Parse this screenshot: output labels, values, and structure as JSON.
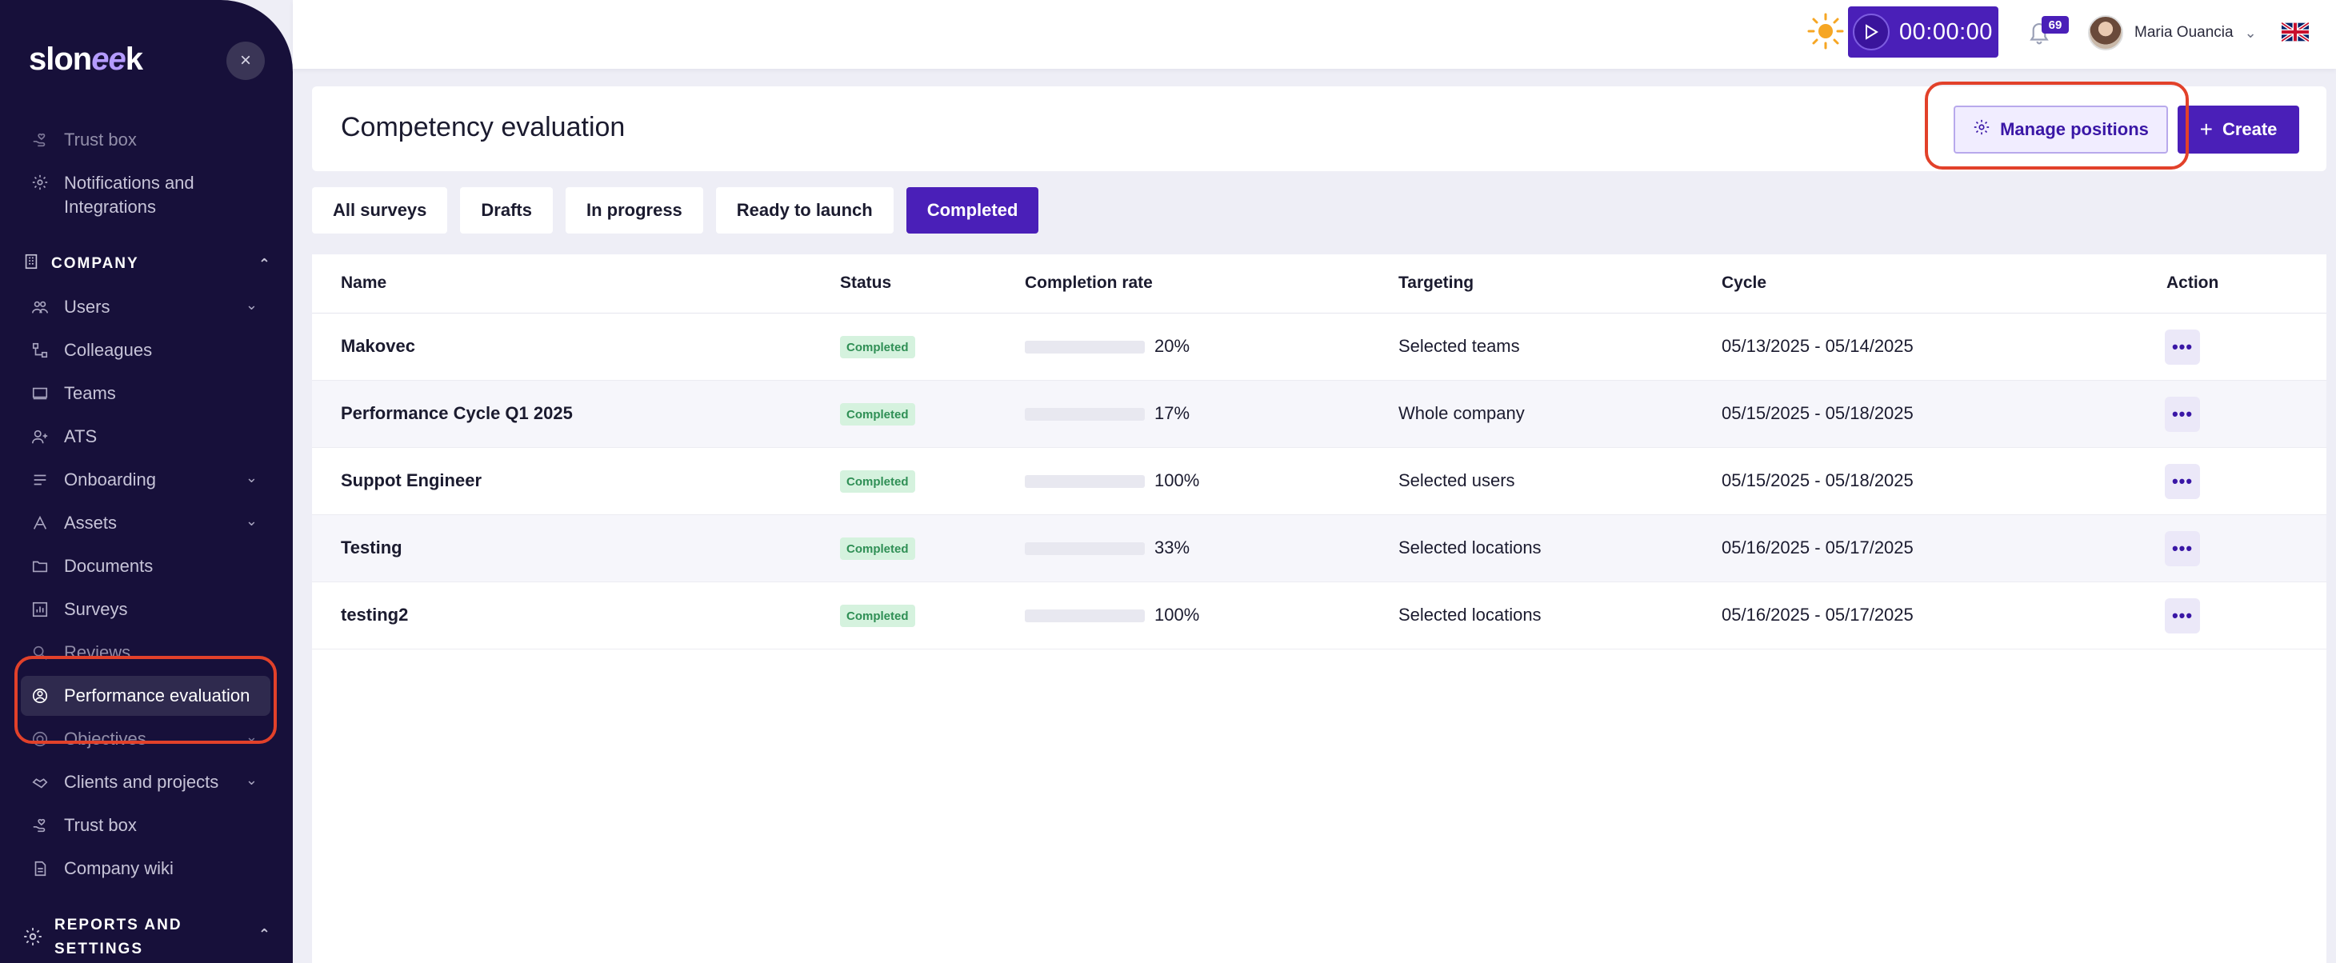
{
  "brand": {
    "logo_prefix": "slon",
    "logo_mid": "ee",
    "logo_suffix": "k"
  },
  "colors": {
    "sidebar_bg": "#17103a",
    "accent": "#4a1fb8",
    "status_green": "#2f8f55",
    "highlight_red": "#e2412a"
  },
  "sidebar": {
    "top_items": [
      {
        "label": "Trust box",
        "icon": "hand-heart-icon"
      },
      {
        "label": "Notifications and Integrations",
        "line1": "Notifications and",
        "line2": "Integrations",
        "icon": "gear-icon"
      }
    ],
    "company_section": "COMPANY",
    "items": [
      {
        "label": "Users",
        "icon": "users-icon",
        "expandable": true
      },
      {
        "label": "Colleagues",
        "icon": "org-chart-icon"
      },
      {
        "label": "Teams",
        "icon": "teams-icon"
      },
      {
        "label": "ATS",
        "icon": "add-user-icon"
      },
      {
        "label": "Onboarding",
        "icon": "list-icon",
        "expandable": true
      },
      {
        "label": "Assets",
        "icon": "assets-icon",
        "expandable": true
      },
      {
        "label": "Documents",
        "icon": "folder-icon"
      },
      {
        "label": "Surveys",
        "icon": "bar-chart-icon"
      },
      {
        "label": "Reviews",
        "icon": "reviews-icon"
      },
      {
        "label": "Performance evaluation",
        "icon": "performance-icon",
        "active": true
      },
      {
        "label": "Objectives",
        "icon": "target-icon",
        "expandable": true
      },
      {
        "label": "Clients and projects",
        "icon": "handshake-icon",
        "expandable": true
      },
      {
        "label": "Trust box",
        "icon": "hand-heart-icon"
      },
      {
        "label": "Company wiki",
        "icon": "wiki-icon"
      }
    ],
    "reports_section_line1": "REPORTS AND",
    "reports_section_line2": "SETTINGS"
  },
  "topbar": {
    "timer": "00:00:00",
    "notifications_count": "69",
    "user_name": "Maria Ouancia"
  },
  "header": {
    "title": "Competency evaluation",
    "manage_label": "Manage positions",
    "create_label": "Create"
  },
  "tabs": [
    "All surveys",
    "Drafts",
    "In progress",
    "Ready to launch",
    "Completed"
  ],
  "active_tab": "Completed",
  "table": {
    "columns": [
      "Name",
      "Status",
      "Completion rate",
      "Targeting",
      "Cycle",
      "Action"
    ],
    "rows": [
      {
        "name": "Makovec",
        "status": "Completed",
        "rate": 20,
        "rate_label": "20%",
        "targeting": "Selected teams",
        "cycle": "05/13/2025 - 05/14/2025"
      },
      {
        "name": "Performance Cycle Q1 2025",
        "status": "Completed",
        "rate": 17,
        "rate_label": "17%",
        "targeting": "Whole company",
        "cycle": "05/15/2025 - 05/18/2025"
      },
      {
        "name": "Suppot Engineer",
        "status": "Completed",
        "rate": 100,
        "rate_label": "100%",
        "targeting": "Selected users",
        "cycle": "05/15/2025 - 05/18/2025"
      },
      {
        "name": "Testing",
        "status": "Completed",
        "rate": 33,
        "rate_label": "33%",
        "targeting": "Selected locations",
        "cycle": "05/16/2025 - 05/17/2025"
      },
      {
        "name": "testing2",
        "status": "Completed",
        "rate": 100,
        "rate_label": "100%",
        "targeting": "Selected locations",
        "cycle": "05/16/2025 - 05/17/2025"
      }
    ]
  }
}
